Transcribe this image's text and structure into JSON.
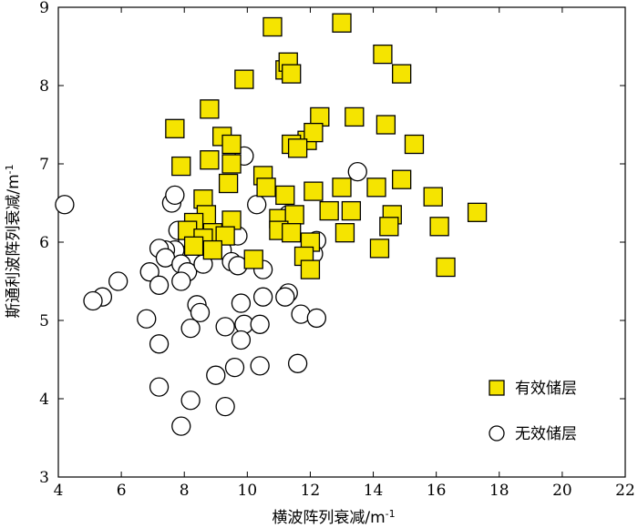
{
  "chart_data": {
    "type": "scatter",
    "xlabel": "横波阵列衰减/m",
    "xlabel_sup": "-1",
    "ylabel": "斯通利波阵列衰减/m",
    "ylabel_sup": "-1",
    "xlim": [
      4,
      22
    ],
    "ylim": [
      3,
      9
    ],
    "xticks": [
      4,
      6,
      8,
      10,
      12,
      14,
      16,
      18,
      20,
      22
    ],
    "yticks": [
      3,
      4,
      5,
      6,
      7,
      8,
      9
    ],
    "grid": false,
    "legend_position": "bottom-right",
    "series": [
      {
        "name": "有效储层",
        "marker": "square",
        "color": "#f5e400",
        "points": [
          [
            10.8,
            8.75
          ],
          [
            13.0,
            8.8
          ],
          [
            14.3,
            8.4
          ],
          [
            14.9,
            8.15
          ],
          [
            11.2,
            8.2
          ],
          [
            11.3,
            8.3
          ],
          [
            11.4,
            8.15
          ],
          [
            9.9,
            8.08
          ],
          [
            8.8,
            7.7
          ],
          [
            7.7,
            7.45
          ],
          [
            12.3,
            7.6
          ],
          [
            13.4,
            7.6
          ],
          [
            14.4,
            7.5
          ],
          [
            9.2,
            7.35
          ],
          [
            9.5,
            7.25
          ],
          [
            11.9,
            7.3
          ],
          [
            12.1,
            7.4
          ],
          [
            11.4,
            7.25
          ],
          [
            11.6,
            7.2
          ],
          [
            15.3,
            7.25
          ],
          [
            7.9,
            6.97
          ],
          [
            8.8,
            7.05
          ],
          [
            9.5,
            7.0
          ],
          [
            10.5,
            6.85
          ],
          [
            14.9,
            6.8
          ],
          [
            9.4,
            6.75
          ],
          [
            10.6,
            6.7
          ],
          [
            12.1,
            6.65
          ],
          [
            13.0,
            6.7
          ],
          [
            14.1,
            6.7
          ],
          [
            15.9,
            6.58
          ],
          [
            8.6,
            6.55
          ],
          [
            11.2,
            6.6
          ],
          [
            12.6,
            6.4
          ],
          [
            13.3,
            6.4
          ],
          [
            17.3,
            6.38
          ],
          [
            14.6,
            6.35
          ],
          [
            8.7,
            6.35
          ],
          [
            8.3,
            6.25
          ],
          [
            9.5,
            6.28
          ],
          [
            11.0,
            6.3
          ],
          [
            11.5,
            6.35
          ],
          [
            11.0,
            6.15
          ],
          [
            11.4,
            6.12
          ],
          [
            12.0,
            6.0
          ],
          [
            13.1,
            6.12
          ],
          [
            14.5,
            6.2
          ],
          [
            16.1,
            6.2
          ],
          [
            8.1,
            6.15
          ],
          [
            8.9,
            6.12
          ],
          [
            9.3,
            6.08
          ],
          [
            8.6,
            6.05
          ],
          [
            8.3,
            5.95
          ],
          [
            8.9,
            5.9
          ],
          [
            10.2,
            5.78
          ],
          [
            11.8,
            5.82
          ],
          [
            12.0,
            5.65
          ],
          [
            14.2,
            5.92
          ],
          [
            16.3,
            5.68
          ]
        ]
      },
      {
        "name": "无效储层",
        "marker": "circle",
        "color": "#ffffff",
        "points": [
          [
            4.2,
            6.48
          ],
          [
            7.6,
            6.5
          ],
          [
            7.7,
            6.6
          ],
          [
            9.9,
            7.1
          ],
          [
            13.5,
            6.9
          ],
          [
            10.3,
            6.48
          ],
          [
            11.3,
            6.35
          ],
          [
            7.8,
            6.15
          ],
          [
            8.1,
            6.05
          ],
          [
            9.7,
            6.08
          ],
          [
            7.7,
            5.9
          ],
          [
            7.4,
            5.9
          ],
          [
            7.2,
            5.92
          ],
          [
            7.4,
            5.8
          ],
          [
            7.9,
            5.72
          ],
          [
            8.1,
            5.62
          ],
          [
            8.6,
            5.72
          ],
          [
            9.2,
            5.9
          ],
          [
            9.5,
            5.75
          ],
          [
            9.7,
            5.7
          ],
          [
            10.5,
            5.65
          ],
          [
            12.2,
            6.02
          ],
          [
            12.1,
            5.85
          ],
          [
            6.9,
            5.62
          ],
          [
            5.9,
            5.5
          ],
          [
            7.2,
            5.45
          ],
          [
            7.9,
            5.5
          ],
          [
            5.4,
            5.3
          ],
          [
            5.1,
            5.25
          ],
          [
            8.4,
            5.2
          ],
          [
            9.8,
            5.22
          ],
          [
            10.5,
            5.3
          ],
          [
            11.3,
            5.35
          ],
          [
            11.2,
            5.3
          ],
          [
            8.5,
            5.1
          ],
          [
            6.8,
            5.02
          ],
          [
            9.3,
            4.92
          ],
          [
            9.9,
            4.95
          ],
          [
            10.4,
            4.95
          ],
          [
            11.7,
            5.08
          ],
          [
            12.2,
            5.03
          ],
          [
            8.2,
            4.9
          ],
          [
            9.8,
            4.75
          ],
          [
            7.2,
            4.7
          ],
          [
            9.6,
            4.4
          ],
          [
            10.4,
            4.42
          ],
          [
            11.6,
            4.45
          ],
          [
            9.0,
            4.3
          ],
          [
            7.2,
            4.15
          ],
          [
            8.2,
            3.98
          ],
          [
            9.3,
            3.9
          ],
          [
            7.9,
            3.65
          ]
        ]
      }
    ]
  }
}
